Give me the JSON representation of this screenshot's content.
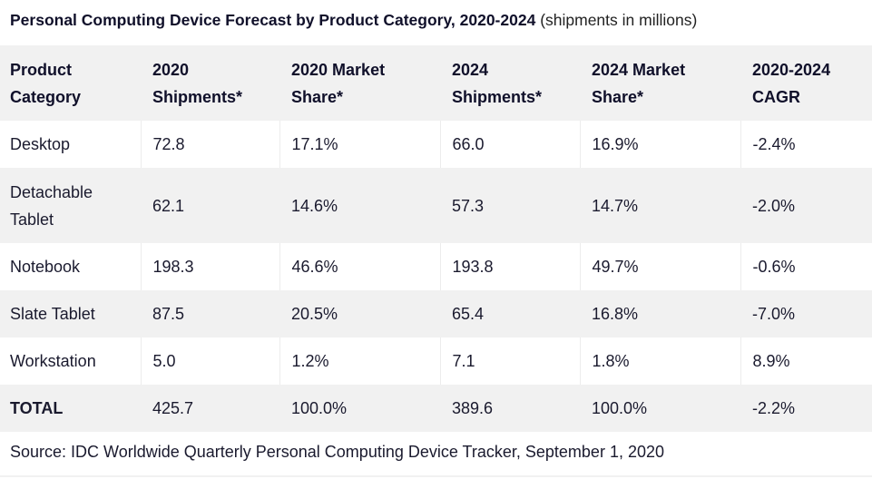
{
  "title": {
    "main": "Personal Computing Device Forecast by Product Category, 2020-2024",
    "subtitle": "(shipments in millions)"
  },
  "table": {
    "headers": [
      [
        "Product",
        "Category"
      ],
      [
        "2020",
        "Shipments*"
      ],
      [
        "2020 Market",
        "Share*"
      ],
      [
        "2024",
        "Shipments*"
      ],
      [
        "2024 Market",
        "Share*"
      ],
      [
        "2020-2024",
        "CAGR"
      ]
    ],
    "rows": [
      {
        "category": "Desktop",
        "category_lines": [
          "Desktop"
        ],
        "shipments_2020": "72.8",
        "share_2020": "17.1%",
        "shipments_2024": "66.0",
        "share_2024": "16.9%",
        "cagr": "-2.4%"
      },
      {
        "category": "Detachable Tablet",
        "category_lines": [
          "Detachable",
          "Tablet"
        ],
        "shipments_2020": "62.1",
        "share_2020": "14.6%",
        "shipments_2024": "57.3",
        "share_2024": "14.7%",
        "cagr": "-2.0%"
      },
      {
        "category": "Notebook",
        "category_lines": [
          "Notebook"
        ],
        "shipments_2020": "198.3",
        "share_2020": "46.6%",
        "shipments_2024": "193.8",
        "share_2024": "49.7%",
        "cagr": "-0.6%"
      },
      {
        "category": "Slate Tablet",
        "category_lines": [
          "Slate Tablet"
        ],
        "shipments_2020": "87.5",
        "share_2020": "20.5%",
        "shipments_2024": "65.4",
        "share_2024": "16.8%",
        "cagr": "-7.0%"
      },
      {
        "category": "Workstation",
        "category_lines": [
          "Workstation"
        ],
        "shipments_2020": "5.0",
        "share_2020": "1.2%",
        "shipments_2024": "7.1",
        "share_2024": "1.8%",
        "cagr": "8.9%"
      }
    ],
    "total": {
      "category": "TOTAL",
      "shipments_2020": "425.7",
      "share_2020": "100.0%",
      "shipments_2024": "389.6",
      "share_2024": "100.0%",
      "cagr": "-2.2%"
    }
  },
  "source": "Source: IDC Worldwide Quarterly Personal Computing Device Tracker, September 1, 2020",
  "colors": {
    "header_bg": "#f1f1f1",
    "stripe_bg": "#f1f1f1",
    "text": "#1a1a2e"
  }
}
